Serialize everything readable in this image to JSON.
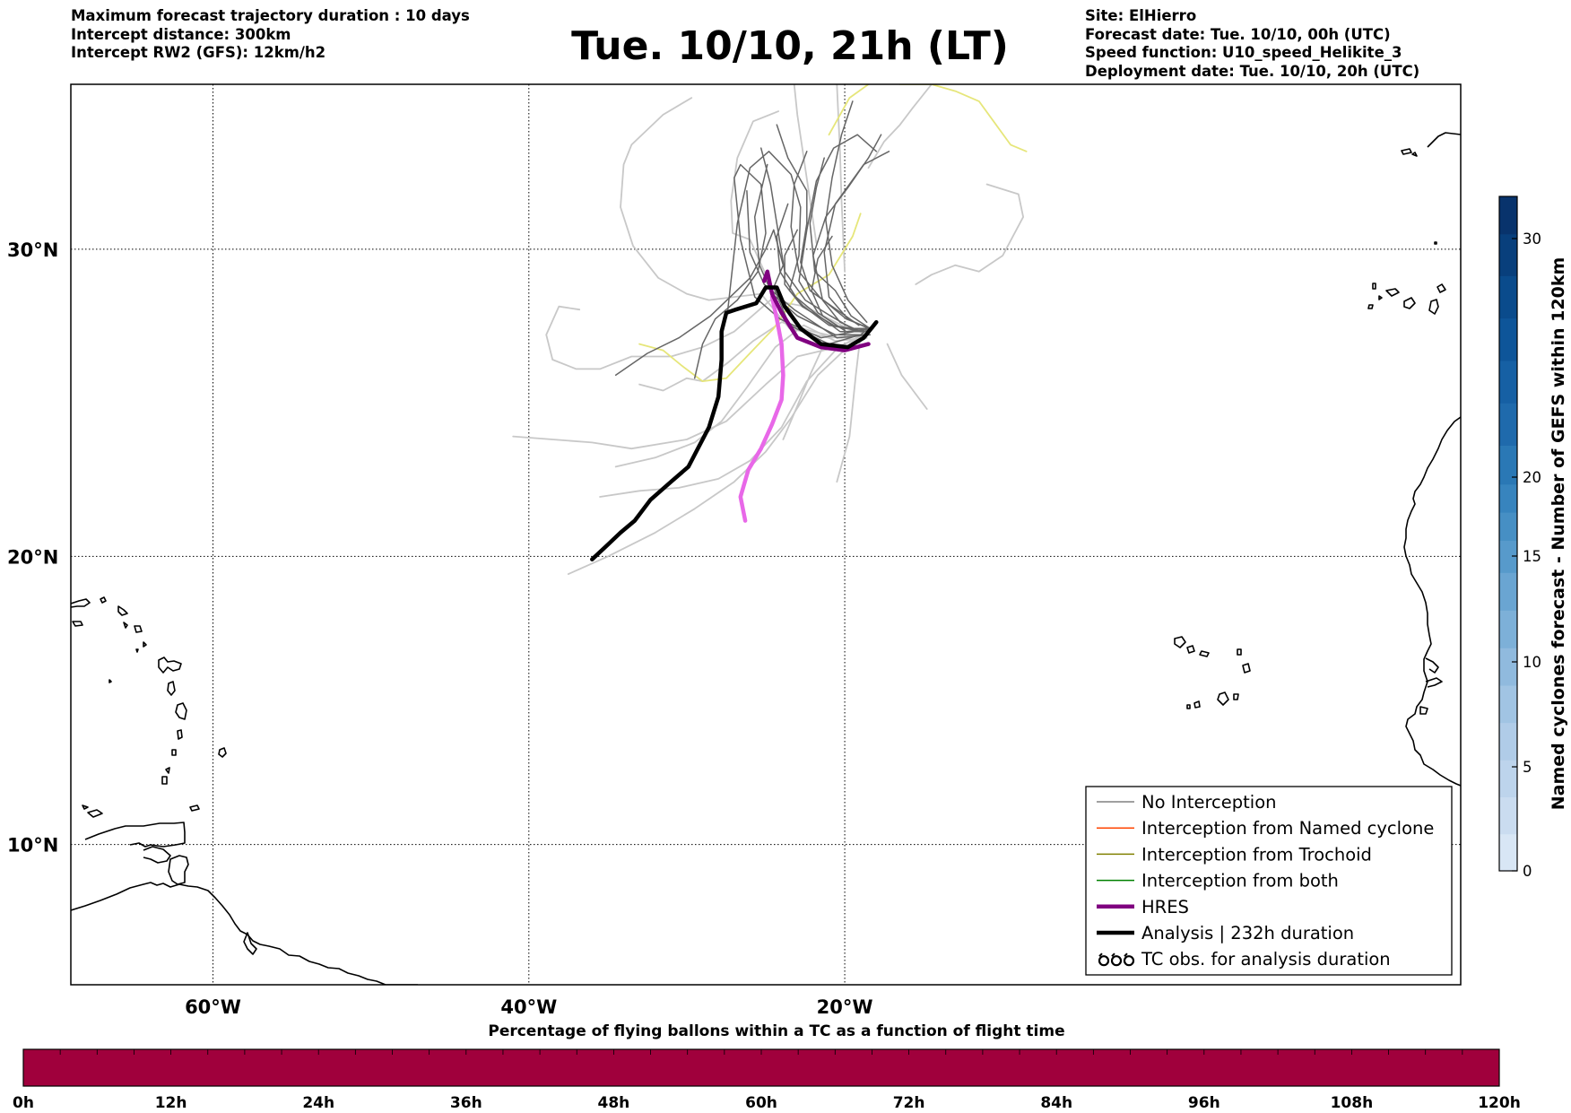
{
  "header": {
    "left_lines": [
      "Maximum forecast trajectory duration : 10 days",
      "Intercept distance: 300km",
      "Intercept RW2 (GFS):  12km/h2"
    ],
    "title": "Tue. 10/10, 21h (LT)",
    "right_lines": [
      "Site: ElHierro",
      "Forecast date: Tue. 10/10, 00h (UTC)",
      "Speed function: U10_speed_Helikite_3",
      "Deployment date: Tue. 10/10, 20h (UTC)"
    ]
  },
  "map": {
    "lon_range": [
      -69,
      19
    ],
    "lat_range": [
      5,
      35
    ],
    "lon_ticks": [
      {
        "value": -60,
        "label": "60°W"
      },
      {
        "value": -40,
        "label": "40°W"
      },
      {
        "value": -20,
        "label": "20°W"
      }
    ],
    "lat_ticks": [
      {
        "value": 30,
        "label": "30°N"
      },
      {
        "value": 20,
        "label": "20°N"
      },
      {
        "value": 10,
        "label": "10°N"
      }
    ],
    "gridlines": true,
    "site": {
      "name": "ElHierro",
      "lon": -18.0,
      "lat": 27.7
    },
    "colors": {
      "no_interception": "#666666",
      "gefs_light": "#c8c8c8",
      "named_cyclone": "#ff4500",
      "trochoid": "#808000",
      "both": "#008000",
      "hres": "#800080",
      "hres_light": "#e868e8",
      "analysis": "#000000",
      "yellow_track": "#e6e67a"
    },
    "analysis_track": [
      [
        -18.0,
        27.7
      ],
      [
        -18.8,
        27.2
      ],
      [
        -19.8,
        26.9
      ],
      [
        -21.5,
        27.0
      ],
      [
        -22.8,
        27.5
      ],
      [
        -23.8,
        28.2
      ],
      [
        -24.3,
        28.8
      ],
      [
        -25.0,
        28.8
      ],
      [
        -25.6,
        28.3
      ],
      [
        -26.9,
        28.1
      ],
      [
        -27.5,
        28.0
      ],
      [
        -27.8,
        27.4
      ],
      [
        -27.8,
        26.5
      ],
      [
        -28.0,
        25.3
      ],
      [
        -28.6,
        24.3
      ],
      [
        -29.2,
        23.7
      ],
      [
        -29.9,
        23.0
      ],
      [
        -31.0,
        22.5
      ],
      [
        -32.3,
        21.9
      ],
      [
        -33.3,
        21.2
      ],
      [
        -34.2,
        20.8
      ],
      [
        -35.0,
        20.4
      ],
      [
        -36.0,
        19.9
      ]
    ],
    "hres_track": [
      [
        -18.5,
        27.0
      ],
      [
        -20.0,
        26.8
      ],
      [
        -21.5,
        26.9
      ],
      [
        -23.0,
        27.2
      ],
      [
        -24.0,
        28.0
      ],
      [
        -24.6,
        28.6
      ],
      [
        -24.9,
        29.3
      ],
      [
        -25.1,
        29.0
      ]
    ],
    "hres_light_track": [
      [
        -24.6,
        28.5
      ],
      [
        -24.3,
        27.8
      ],
      [
        -24.0,
        27.0
      ],
      [
        -23.9,
        26.0
      ],
      [
        -24.0,
        25.2
      ],
      [
        -24.6,
        24.4
      ],
      [
        -25.3,
        23.6
      ],
      [
        -26.1,
        22.9
      ],
      [
        -26.6,
        22.0
      ],
      [
        -26.3,
        21.2
      ]
    ],
    "yellow_tracks": [
      [
        [
          -33.0,
          27.0
        ],
        [
          -31.5,
          26.8
        ],
        [
          -30.3,
          26.3
        ],
        [
          -29.0,
          25.8
        ],
        [
          -27.5,
          25.9
        ],
        [
          -26.2,
          26.6
        ],
        [
          -24.5,
          27.5
        ],
        [
          -23.0,
          28.6
        ],
        [
          -21.0,
          29.2
        ],
        [
          -19.5,
          30.4
        ],
        [
          -19.0,
          31.1
        ]
      ],
      [
        [
          -16.5,
          35.0
        ],
        [
          -14.5,
          35.0
        ],
        [
          -13.0,
          34.8
        ],
        [
          -11.5,
          34.5
        ],
        [
          -9.5,
          33.2
        ],
        [
          -8.5,
          33.0
        ]
      ],
      [
        [
          -21.0,
          33.5
        ],
        [
          -19.7,
          34.6
        ],
        [
          -18.5,
          35.0
        ]
      ]
    ],
    "gefs_light_tracks": [
      [
        [
          -41.0,
          24.0
        ],
        [
          -36.0,
          23.8
        ],
        [
          -33.5,
          23.6
        ],
        [
          -30.0,
          23.9
        ],
        [
          -27.5,
          24.5
        ],
        [
          -25.0,
          25.7
        ],
        [
          -23.0,
          26.6
        ],
        [
          -20.5,
          26.9
        ],
        [
          -18.5,
          27.3
        ]
      ],
      [
        [
          -37.5,
          19.4
        ],
        [
          -35.0,
          20.0
        ],
        [
          -32.0,
          20.8
        ],
        [
          -29.5,
          21.6
        ],
        [
          -27.0,
          22.5
        ],
        [
          -25.0,
          23.5
        ],
        [
          -23.4,
          24.6
        ],
        [
          -21.7,
          26.0
        ],
        [
          -19.2,
          27.2
        ],
        [
          -18.2,
          27.5
        ]
      ],
      [
        [
          -35.5,
          22.0
        ],
        [
          -33.0,
          22.2
        ],
        [
          -30.5,
          22.3
        ],
        [
          -28.0,
          22.6
        ],
        [
          -26.0,
          23.2
        ],
        [
          -24.0,
          24.3
        ],
        [
          -22.4,
          25.8
        ],
        [
          -20.4,
          26.9
        ],
        [
          -18.5,
          27.4
        ]
      ],
      [
        [
          -34.5,
          23.0
        ],
        [
          -32.0,
          23.3
        ],
        [
          -29.5,
          23.8
        ],
        [
          -27.8,
          24.5
        ],
        [
          -26.2,
          25.6
        ],
        [
          -24.4,
          26.9
        ],
        [
          -22.6,
          27.6
        ],
        [
          -20.6,
          27.1
        ],
        [
          -18.6,
          27.2
        ]
      ],
      [
        [
          -33.0,
          25.7
        ],
        [
          -31.5,
          25.5
        ],
        [
          -30.0,
          25.9
        ],
        [
          -29.0,
          25.8
        ],
        [
          -27.4,
          26.4
        ],
        [
          -25.8,
          27.1
        ],
        [
          -24.0,
          27.7
        ],
        [
          -22.0,
          27.4
        ],
        [
          -20.2,
          27.2
        ],
        [
          -18.5,
          27.3
        ]
      ],
      [
        [
          -29.7,
          34.6
        ],
        [
          -31.5,
          34.1
        ],
        [
          -33.5,
          33.2
        ],
        [
          -34.0,
          32.6
        ],
        [
          -34.2,
          31.3
        ],
        [
          -33.4,
          30.1
        ],
        [
          -31.8,
          29.1
        ],
        [
          -30.0,
          28.6
        ],
        [
          -28.6,
          28.4
        ],
        [
          -27.0,
          28.5
        ],
        [
          -25.3,
          28.6
        ],
        [
          -23.5,
          27.5
        ],
        [
          -21.0,
          27.2
        ],
        [
          -18.6,
          27.3
        ]
      ],
      [
        [
          -36.8,
          28.1
        ],
        [
          -38.1,
          28.2
        ],
        [
          -38.9,
          27.3
        ],
        [
          -38.5,
          26.5
        ],
        [
          -37.0,
          26.2
        ],
        [
          -35.5,
          26.2
        ],
        [
          -33.5,
          26.6
        ],
        [
          -31.0,
          26.6
        ],
        [
          -29.0,
          26.9
        ],
        [
          -27.0,
          27.4
        ],
        [
          -24.7,
          28.4
        ],
        [
          -22.5,
          28.2
        ],
        [
          -20.2,
          27.6
        ],
        [
          -18.5,
          27.3
        ]
      ],
      [
        [
          -21.8,
          30.2
        ],
        [
          -22.5,
          32.5
        ],
        [
          -23.0,
          34.1
        ],
        [
          -23.2,
          35.0
        ]
      ],
      [
        [
          -20.5,
          35.0
        ],
        [
          -20.3,
          33.0
        ],
        [
          -20.2,
          31.5
        ],
        [
          -20.0,
          29.3
        ]
      ],
      [
        [
          -14.5,
          35.0
        ],
        [
          -15.7,
          34.3
        ],
        [
          -16.5,
          33.8
        ],
        [
          -17.5,
          33.3
        ],
        [
          -18.5,
          32.5
        ]
      ],
      [
        [
          -11.0,
          32.0
        ],
        [
          -9.0,
          31.7
        ],
        [
          -8.7,
          31.0
        ],
        [
          -10.0,
          29.8
        ],
        [
          -11.5,
          29.3
        ],
        [
          -13.0,
          29.5
        ],
        [
          -14.5,
          29.2
        ],
        [
          -15.5,
          28.9
        ]
      ],
      [
        [
          -20.5,
          22.5
        ],
        [
          -19.7,
          24.0
        ],
        [
          -19.3,
          26.0
        ],
        [
          -19.0,
          27.3
        ]
      ],
      [
        [
          -14.8,
          24.9
        ],
        [
          -16.4,
          26.0
        ],
        [
          -17.3,
          27.0
        ]
      ],
      [
        [
          -23.9,
          23.9
        ],
        [
          -23.0,
          25.0
        ],
        [
          -22.2,
          26.0
        ],
        [
          -21.3,
          27.0
        ]
      ],
      [
        [
          -24.2,
          34.2
        ],
        [
          -25.8,
          33.9
        ],
        [
          -26.8,
          32.8
        ],
        [
          -27.2,
          31.5
        ],
        [
          -27.1,
          30.5
        ],
        [
          -26.0,
          30.3
        ],
        [
          -25.0,
          29.2
        ],
        [
          -24.5,
          28.3
        ]
      ]
    ],
    "gefs_dark_tracks": [
      [
        [
          -34.5,
          26.0
        ],
        [
          -32.5,
          26.7
        ],
        [
          -30.5,
          27.2
        ],
        [
          -28.5,
          27.9
        ],
        [
          -26.0,
          29.1
        ],
        [
          -25.0,
          30.0
        ],
        [
          -24.5,
          30.6
        ],
        [
          -23.9,
          29.5
        ],
        [
          -24.5,
          28.8
        ],
        [
          -23.5,
          27.6
        ],
        [
          -21.0,
          27.0
        ],
        [
          -19.0,
          27.3
        ],
        [
          -18.2,
          27.6
        ]
      ],
      [
        [
          -29.5,
          25.9
        ],
        [
          -29.0,
          27.0
        ],
        [
          -28.2,
          27.8
        ],
        [
          -26.8,
          28.4
        ],
        [
          -25.5,
          29.3
        ],
        [
          -25.0,
          30.5
        ],
        [
          -25.3,
          32.0
        ],
        [
          -26.6,
          32.6
        ],
        [
          -27.0,
          32.2
        ],
        [
          -26.6,
          30.3
        ],
        [
          -25.7,
          28.5
        ],
        [
          -24.1,
          27.8
        ],
        [
          -21.5,
          27.2
        ],
        [
          -18.3,
          27.5
        ]
      ],
      [
        [
          -27.4,
          28.1
        ],
        [
          -26.8,
          30.8
        ],
        [
          -26.0,
          32.5
        ],
        [
          -24.8,
          33.0
        ],
        [
          -23.4,
          32.3
        ],
        [
          -22.8,
          31.3
        ],
        [
          -22.9,
          29.8
        ],
        [
          -23.5,
          28.7
        ],
        [
          -22.6,
          28.2
        ],
        [
          -21.0,
          27.6
        ],
        [
          -18.9,
          27.4
        ]
      ],
      [
        [
          -24.3,
          33.8
        ],
        [
          -23.6,
          32.8
        ],
        [
          -22.4,
          31.8
        ],
        [
          -22.4,
          30.8
        ],
        [
          -22.8,
          29.6
        ],
        [
          -22.2,
          28.7
        ],
        [
          -20.8,
          28.2
        ],
        [
          -19.1,
          27.6
        ]
      ],
      [
        [
          -25.3,
          33.1
        ],
        [
          -24.7,
          32.0
        ],
        [
          -24.3,
          30.8
        ],
        [
          -23.8,
          29.3
        ],
        [
          -22.5,
          28.4
        ],
        [
          -20.9,
          27.9
        ],
        [
          -19.2,
          27.4
        ]
      ],
      [
        [
          -21.3,
          32.8
        ],
        [
          -21.8,
          31.9
        ],
        [
          -22.2,
          30.8
        ],
        [
          -21.9,
          29.3
        ],
        [
          -20.6,
          28.7
        ],
        [
          -19.6,
          27.9
        ],
        [
          -18.4,
          27.5
        ]
      ],
      [
        [
          -18.0,
          33.0
        ],
        [
          -19.2,
          33.5
        ],
        [
          -20.7,
          33.1
        ],
        [
          -21.8,
          32.1
        ],
        [
          -22.4,
          30.6
        ],
        [
          -22.9,
          29.0
        ],
        [
          -21.7,
          28.0
        ],
        [
          -20.2,
          27.5
        ],
        [
          -18.6,
          27.5
        ]
      ],
      [
        [
          -17.7,
          33.5
        ],
        [
          -18.5,
          32.8
        ],
        [
          -19.8,
          31.9
        ],
        [
          -21.2,
          31.0
        ],
        [
          -22.0,
          29.8
        ],
        [
          -21.4,
          28.4
        ],
        [
          -20.3,
          27.7
        ],
        [
          -19.0,
          27.4
        ]
      ],
      [
        [
          -23.6,
          31.4
        ],
        [
          -24.3,
          30.4
        ],
        [
          -24.1,
          29.3
        ],
        [
          -23.1,
          28.5
        ],
        [
          -21.9,
          28.0
        ],
        [
          -20.3,
          27.4
        ],
        [
          -18.8,
          27.4
        ]
      ],
      [
        [
          -17.2,
          33.0
        ],
        [
          -18.8,
          32.6
        ],
        [
          -20.6,
          31.4
        ],
        [
          -21.3,
          29.9
        ],
        [
          -21.0,
          28.5
        ],
        [
          -19.8,
          27.8
        ],
        [
          -18.5,
          27.5
        ]
      ],
      [
        [
          -24.9,
          32.6
        ],
        [
          -25.7,
          31.0
        ],
        [
          -25.4,
          29.5
        ],
        [
          -24.6,
          28.6
        ],
        [
          -23.0,
          27.9
        ],
        [
          -20.6,
          27.3
        ],
        [
          -18.5,
          27.3
        ]
      ],
      [
        [
          -26.2,
          31.8
        ],
        [
          -26.0,
          29.9
        ],
        [
          -25.1,
          28.9
        ],
        [
          -23.2,
          28.1
        ],
        [
          -20.5,
          27.2
        ],
        [
          -18.4,
          27.3
        ]
      ],
      [
        [
          -19.5,
          34.5
        ],
        [
          -20.2,
          33.5
        ],
        [
          -20.8,
          32.2
        ],
        [
          -21.2,
          30.9
        ],
        [
          -20.8,
          29.5
        ],
        [
          -19.8,
          28.4
        ],
        [
          -18.6,
          27.7
        ]
      ],
      [
        [
          -22.4,
          33.0
        ],
        [
          -23.2,
          32.0
        ],
        [
          -23.4,
          30.7
        ],
        [
          -22.9,
          29.3
        ],
        [
          -21.6,
          28.5
        ],
        [
          -19.9,
          27.8
        ],
        [
          -18.4,
          27.5
        ]
      ],
      [
        [
          -20.8,
          30.4
        ],
        [
          -21.7,
          29.7
        ],
        [
          -22.1,
          28.7
        ],
        [
          -21.4,
          27.9
        ],
        [
          -19.9,
          27.4
        ],
        [
          -18.3,
          27.5
        ]
      ],
      [
        [
          -23.0,
          30.6
        ],
        [
          -23.8,
          29.8
        ],
        [
          -23.8,
          28.9
        ],
        [
          -22.7,
          28.2
        ],
        [
          -20.7,
          27.6
        ],
        [
          -18.6,
          27.4
        ]
      ]
    ]
  },
  "legend": {
    "items": [
      {
        "label": "No Interception",
        "style": "thin",
        "color": "#808080"
      },
      {
        "label": "Interception from Named cyclone",
        "style": "thin",
        "color": "#ff4500"
      },
      {
        "label": "Interception from Trochoid",
        "style": "thin",
        "color": "#808000"
      },
      {
        "label": "Interception from both",
        "style": "thin",
        "color": "#008000"
      },
      {
        "label": "HRES",
        "style": "thick",
        "color": "#800080"
      },
      {
        "label": "Analysis | 232h duration",
        "style": "thick",
        "color": "#000000"
      },
      {
        "label": "TC obs. for analysis duration",
        "style": "symbol",
        "color": "#000000"
      }
    ]
  },
  "colorbar": {
    "title": "Named cyclones forecast - Number of GEFS within 120km",
    "ticks": [
      {
        "value": 0,
        "label": "0"
      },
      {
        "value": 5,
        "label": "5"
      },
      {
        "value": 10,
        "label": "10"
      },
      {
        "value": 15,
        "label": "15"
      },
      {
        "value": 20,
        "label": "20"
      },
      {
        "value": 30,
        "label": "30"
      }
    ],
    "colors": [
      "#d8e6f5",
      "#cadcf0",
      "#bdd4ec",
      "#b0cce8",
      "#a1c4e3",
      "#90bade",
      "#7db0d8",
      "#6aa5d2",
      "#579acb",
      "#468fc4",
      "#3784be",
      "#2a78b5",
      "#1f6aac",
      "#1660a4",
      "#0e5599",
      "#0a4b8c",
      "#083f7c",
      "#08336c"
    ]
  },
  "time_bar": {
    "title": "Percentage of flying ballons within a TC as a function of flight time",
    "color": "#a0003c",
    "ticks": [
      "0h",
      "12h",
      "24h",
      "36h",
      "48h",
      "60h",
      "72h",
      "84h",
      "96h",
      "108h",
      "120h"
    ]
  }
}
